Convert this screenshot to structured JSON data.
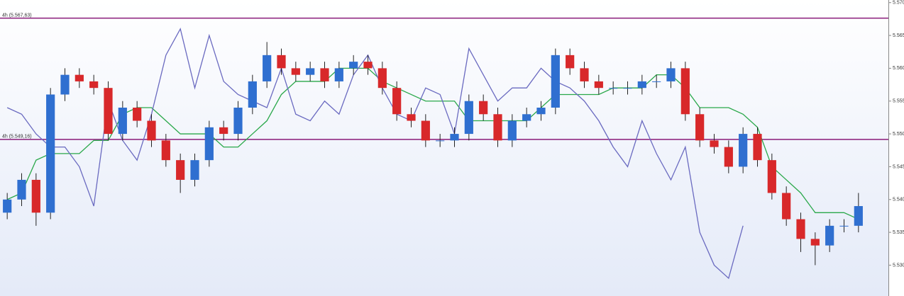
{
  "chart_data": {
    "type": "candlestick",
    "ylim": [
      5.5253,
      5.5704
    ],
    "yticks": [
      {
        "value": 5.53,
        "label": "5.530"
      },
      5.535,
      {
        "value": 5.54,
        "label": "5.540"
      },
      5.545,
      {
        "value": 5.55,
        "label": "5.550"
      },
      5.555,
      {
        "value": 5.56,
        "label": "5.560"
      },
      5.565,
      {
        "value": 5.57,
        "label": "5.570"
      }
    ],
    "up_color": "#2f6fd0",
    "down_color": "#d8282a",
    "open": [
      5.538,
      5.54,
      5.543,
      5.538,
      5.556,
      5.559,
      5.558,
      5.557,
      5.55,
      5.554,
      5.552,
      5.549,
      5.546,
      5.543,
      5.546,
      5.551,
      5.55,
      5.554,
      5.558,
      5.562,
      5.56,
      5.559,
      5.56,
      5.558,
      5.56,
      5.561,
      5.56,
      5.557,
      5.553,
      5.552,
      5.549,
      5.549,
      5.55,
      5.555,
      5.553,
      5.549,
      5.552,
      5.553,
      5.554,
      5.562,
      5.56,
      5.558,
      5.557,
      5.557,
      5.557,
      5.558,
      5.558,
      5.56,
      5.553,
      5.549,
      5.548,
      5.545,
      5.55,
      5.546,
      5.541,
      5.537,
      5.534,
      5.533,
      5.536,
      5.536
    ],
    "high": [
      5.541,
      5.544,
      5.544,
      5.557,
      5.56,
      5.56,
      5.559,
      5.558,
      5.555,
      5.555,
      5.553,
      5.55,
      5.547,
      5.547,
      5.552,
      5.552,
      5.555,
      5.559,
      5.564,
      5.563,
      5.561,
      5.561,
      5.561,
      5.561,
      5.562,
      5.562,
      5.561,
      5.558,
      5.554,
      5.553,
      5.55,
      5.551,
      5.556,
      5.556,
      5.554,
      5.553,
      5.554,
      5.555,
      5.563,
      5.563,
      5.561,
      5.559,
      5.558,
      5.558,
      5.559,
      5.559,
      5.561,
      5.561,
      5.554,
      5.55,
      5.549,
      5.551,
      5.551,
      5.547,
      5.542,
      5.538,
      5.535,
      5.537,
      5.537,
      5.541
    ],
    "low": [
      5.537,
      5.539,
      5.536,
      5.537,
      5.555,
      5.557,
      5.556,
      5.549,
      5.549,
      5.551,
      5.548,
      5.545,
      5.541,
      5.542,
      5.545,
      5.549,
      5.549,
      5.553,
      5.557,
      5.559,
      5.558,
      5.558,
      5.557,
      5.557,
      5.559,
      5.559,
      5.556,
      5.552,
      5.551,
      5.548,
      5.548,
      5.548,
      5.549,
      5.552,
      5.548,
      5.548,
      5.551,
      5.552,
      5.553,
      5.559,
      5.557,
      5.556,
      5.556,
      5.556,
      5.556,
      5.557,
      5.557,
      5.552,
      5.548,
      5.547,
      5.544,
      5.544,
      5.545,
      5.54,
      5.536,
      5.532,
      5.53,
      5.532,
      5.535,
      5.535
    ],
    "close": [
      5.54,
      5.543,
      5.538,
      5.556,
      5.559,
      5.558,
      5.557,
      5.55,
      5.554,
      5.552,
      5.549,
      5.546,
      5.543,
      5.546,
      5.551,
      5.55,
      5.554,
      5.558,
      5.562,
      5.56,
      5.559,
      5.56,
      5.558,
      5.56,
      5.561,
      5.56,
      5.557,
      5.553,
      5.552,
      5.549,
      5.549,
      5.55,
      5.555,
      5.553,
      5.549,
      5.552,
      5.553,
      5.554,
      5.562,
      5.56,
      5.558,
      5.557,
      5.557,
      5.557,
      5.558,
      5.558,
      5.56,
      5.553,
      5.549,
      5.548,
      5.545,
      5.55,
      5.546,
      5.541,
      5.537,
      5.534,
      5.533,
      5.536,
      5.536,
      5.539
    ],
    "series": [
      {
        "color": "#2aa84a",
        "values": [
          5.54,
          5.541,
          5.546,
          5.547,
          5.547,
          5.547,
          5.549,
          5.549,
          5.553,
          5.554,
          5.554,
          5.552,
          5.55,
          5.55,
          5.55,
          5.548,
          5.548,
          5.55,
          5.552,
          5.556,
          5.558,
          5.558,
          5.558,
          5.56,
          5.56,
          5.56,
          5.558,
          5.557,
          5.556,
          5.555,
          5.555,
          5.555,
          5.552,
          5.552,
          5.552,
          5.552,
          5.552,
          5.554,
          5.556,
          5.556,
          5.556,
          5.556,
          5.557,
          5.557,
          5.557,
          5.559,
          5.559,
          5.557,
          5.554,
          5.554,
          5.554,
          5.553,
          5.551,
          5.545,
          5.543,
          5.541,
          5.538,
          5.538,
          5.538,
          5.537
        ]
      },
      {
        "color": "#6a6ac0",
        "values": [
          5.554,
          5.553,
          5.55,
          5.548,
          5.548,
          5.545,
          5.539,
          5.555,
          5.549,
          5.546,
          5.553,
          5.562,
          5.566,
          5.557,
          5.565,
          5.558,
          5.556,
          5.555,
          5.554,
          5.56,
          5.553,
          5.552,
          5.555,
          5.553,
          5.559,
          5.562,
          5.557,
          5.553,
          5.552,
          5.557,
          5.556,
          5.55,
          5.563,
          5.559,
          5.555,
          5.557,
          5.557,
          5.56,
          5.558,
          5.557,
          5.555,
          5.552,
          5.548,
          5.545,
          5.552,
          5.547,
          5.543,
          5.548,
          5.535,
          5.53,
          5.528,
          5.536,
          null,
          null,
          null,
          null,
          null,
          null,
          null,
          null
        ]
      }
    ],
    "hlines": [
      {
        "value": 5.56763,
        "label": "4h (5.567,63)"
      },
      {
        "value": 5.54916,
        "label": "4h (5.549,16)"
      }
    ],
    "hline_color": "#8a1a7a"
  }
}
